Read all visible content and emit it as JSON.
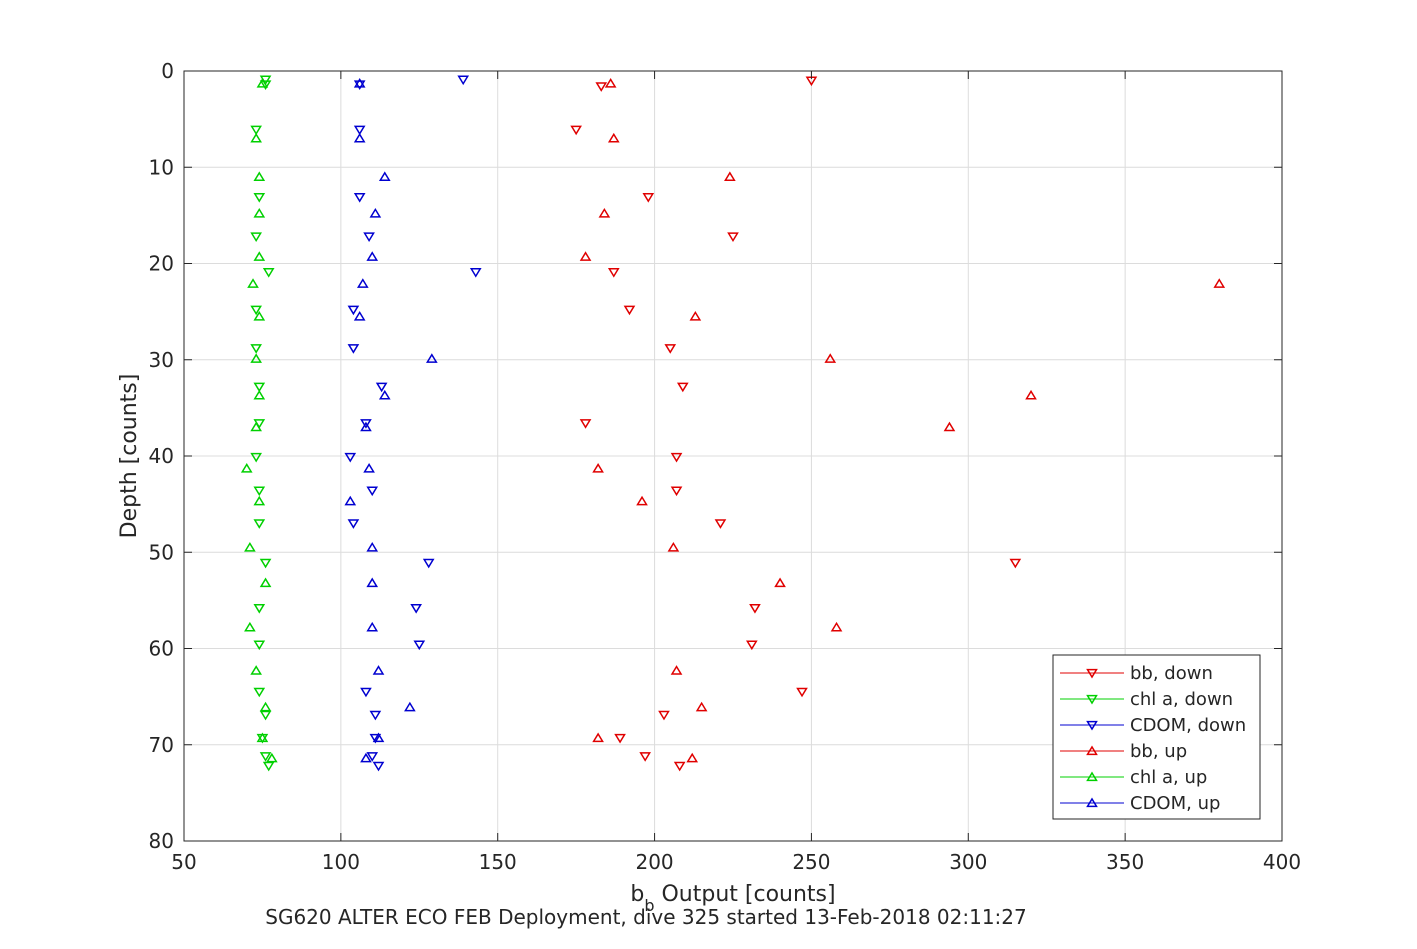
{
  "figure": {
    "caption": "SG620 ALTER ECO FEB Deployment, dive 325 started 13-Feb-2018 02:11:27"
  },
  "chart_data": {
    "type": "scatter",
    "xlabel_main": "b",
    "xlabel_sub": "b",
    "xlabel_rest": " Output [counts]",
    "ylabel": "Depth [counts]",
    "xlim": [
      50,
      400
    ],
    "ylim": [
      0,
      80
    ],
    "y_reversed": true,
    "x_ticks": [
      50,
      100,
      150,
      200,
      250,
      300,
      350,
      400
    ],
    "y_ticks": [
      0,
      10,
      20,
      30,
      40,
      50,
      60,
      70,
      80
    ],
    "grid": true,
    "legend_position": "bottom-right",
    "series": [
      {
        "name": "bb, down",
        "color": "#e00000",
        "marker": "triangle-down",
        "points": [
          [
            250,
            1
          ],
          [
            183,
            1.6
          ],
          [
            175,
            6.1
          ],
          [
            198,
            13.1
          ],
          [
            225,
            17.2
          ],
          [
            187,
            20.9
          ],
          [
            192,
            24.8
          ],
          [
            205,
            28.8
          ],
          [
            209,
            32.8
          ],
          [
            178,
            36.6
          ],
          [
            207,
            40.1
          ],
          [
            207,
            43.6
          ],
          [
            221,
            47
          ],
          [
            315,
            51.1
          ],
          [
            232,
            55.8
          ],
          [
            231,
            59.6
          ],
          [
            247,
            64.5
          ],
          [
            203,
            66.9
          ],
          [
            189,
            69.3
          ],
          [
            197,
            71.2
          ],
          [
            208,
            72.2
          ]
        ]
      },
      {
        "name": "chl a, down",
        "color": "#00d000",
        "marker": "triangle-down",
        "points": [
          [
            76,
            0.9
          ],
          [
            76,
            1.4
          ],
          [
            73,
            6.1
          ],
          [
            74,
            13.1
          ],
          [
            73,
            17.2
          ],
          [
            77,
            20.9
          ],
          [
            73,
            24.8
          ],
          [
            73,
            28.8
          ],
          [
            74,
            32.8
          ],
          [
            74,
            36.6
          ],
          [
            73,
            40.1
          ],
          [
            74,
            43.6
          ],
          [
            74,
            47
          ],
          [
            76,
            51.1
          ],
          [
            74,
            55.8
          ],
          [
            74,
            59.6
          ],
          [
            74,
            64.5
          ],
          [
            76,
            66.9
          ],
          [
            75,
            69.3
          ],
          [
            76,
            71.2
          ],
          [
            77,
            72.2
          ]
        ]
      },
      {
        "name": "CDOM, down",
        "color": "#0000d0",
        "marker": "triangle-down",
        "points": [
          [
            139,
            0.9
          ],
          [
            106,
            1.4
          ],
          [
            106,
            6.1
          ],
          [
            106,
            13.1
          ],
          [
            109,
            17.2
          ],
          [
            143,
            20.9
          ],
          [
            104,
            24.8
          ],
          [
            104,
            28.8
          ],
          [
            113,
            32.8
          ],
          [
            108,
            36.6
          ],
          [
            103,
            40.1
          ],
          [
            110,
            43.6
          ],
          [
            104,
            47
          ],
          [
            128,
            51.1
          ],
          [
            124,
            55.8
          ],
          [
            125,
            59.6
          ],
          [
            108,
            64.5
          ],
          [
            111,
            66.9
          ],
          [
            111,
            69.3
          ],
          [
            110,
            71.2
          ],
          [
            112,
            72.2
          ]
        ]
      },
      {
        "name": "bb, up",
        "color": "#e00000",
        "marker": "triangle-up",
        "points": [
          [
            186,
            1.3
          ],
          [
            187,
            7
          ],
          [
            224,
            11
          ],
          [
            184,
            14.8
          ],
          [
            178,
            19.3
          ],
          [
            380,
            22.1
          ],
          [
            213,
            25.5
          ],
          [
            256,
            29.9
          ],
          [
            320,
            33.7
          ],
          [
            294,
            37
          ],
          [
            182,
            41.3
          ],
          [
            196,
            44.7
          ],
          [
            206,
            49.5
          ],
          [
            240,
            53.2
          ],
          [
            258,
            57.8
          ],
          [
            207,
            62.3
          ],
          [
            215,
            66.1
          ],
          [
            182,
            69.3
          ],
          [
            212,
            71.4
          ]
        ]
      },
      {
        "name": "chl a, up",
        "color": "#00d000",
        "marker": "triangle-up",
        "points": [
          [
            75,
            1.3
          ],
          [
            73,
            7
          ],
          [
            74,
            11
          ],
          [
            74,
            14.8
          ],
          [
            74,
            19.3
          ],
          [
            72,
            22.1
          ],
          [
            74,
            25.5
          ],
          [
            73,
            29.9
          ],
          [
            74,
            33.7
          ],
          [
            73,
            37
          ],
          [
            70,
            41.3
          ],
          [
            74,
            44.7
          ],
          [
            71,
            49.5
          ],
          [
            76,
            53.2
          ],
          [
            71,
            57.8
          ],
          [
            73,
            62.3
          ],
          [
            76,
            66.1
          ],
          [
            75,
            69.3
          ],
          [
            78,
            71.4
          ]
        ]
      },
      {
        "name": "CDOM, up",
        "color": "#0000d0",
        "marker": "triangle-up",
        "points": [
          [
            106,
            1.3
          ],
          [
            106,
            7
          ],
          [
            114,
            11
          ],
          [
            111,
            14.8
          ],
          [
            110,
            19.3
          ],
          [
            107,
            22.1
          ],
          [
            106,
            25.5
          ],
          [
            129,
            29.9
          ],
          [
            114,
            33.7
          ],
          [
            108,
            37
          ],
          [
            109,
            41.3
          ],
          [
            103,
            44.7
          ],
          [
            110,
            49.5
          ],
          [
            110,
            53.2
          ],
          [
            110,
            57.8
          ],
          [
            112,
            62.3
          ],
          [
            122,
            66.1
          ],
          [
            112,
            69.3
          ],
          [
            108,
            71.4
          ]
        ]
      }
    ]
  }
}
